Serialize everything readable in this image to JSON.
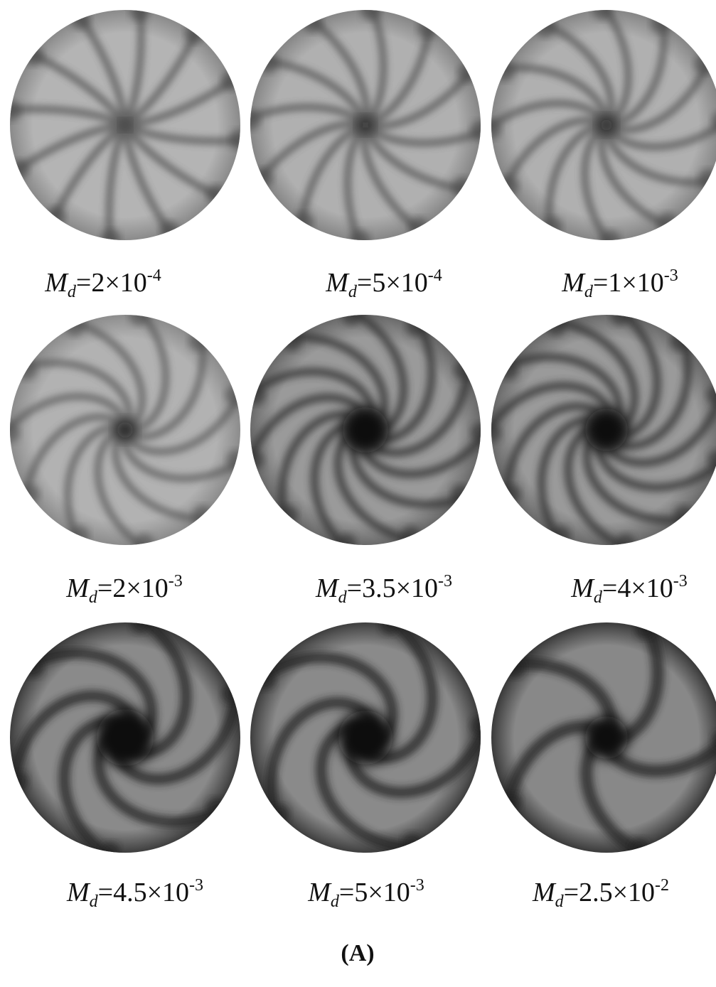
{
  "figure": {
    "panels": [
      {
        "symbol": "M",
        "subscript": "d",
        "mantissa": "=2×10",
        "exponent": "-4"
      },
      {
        "symbol": "M",
        "subscript": "d",
        "mantissa": "=5×10",
        "exponent": "-4"
      },
      {
        "symbol": "M",
        "subscript": "d",
        "mantissa": "=1×10",
        "exponent": "-3"
      },
      {
        "symbol": "M",
        "subscript": "d",
        "mantissa": "=2×10",
        "exponent": "-3"
      },
      {
        "symbol": "M",
        "subscript": "d",
        "mantissa": "=3.5×10",
        "exponent": "-3"
      },
      {
        "symbol": "M",
        "subscript": "d",
        "mantissa": "=4×10",
        "exponent": "-3"
      },
      {
        "symbol": "M",
        "subscript": "d",
        "mantissa": "=4.5×10",
        "exponent": "-3"
      },
      {
        "symbol": "M",
        "subscript": "d",
        "mantissa": "=5×10",
        "exponent": "-3"
      },
      {
        "symbol": "M",
        "subscript": "d",
        "mantissa": "=2.5×10",
        "exponent": "-2"
      }
    ],
    "caption": "(A)"
  }
}
